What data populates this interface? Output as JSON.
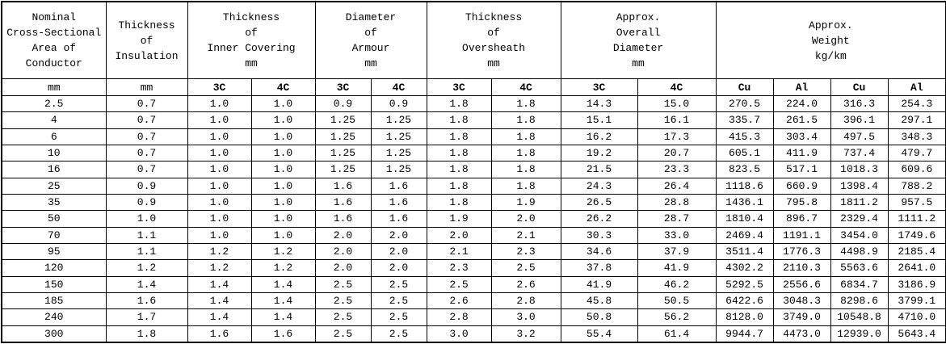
{
  "colors": {
    "border": "#000000",
    "background": "#ffffff",
    "text": "#000000"
  },
  "table": {
    "header_groups": [
      {
        "title": "Nominal\nCross-Sectional\nArea of\nConductor"
      },
      {
        "title": "Thickness\nof\nInsulation"
      },
      {
        "title": "Thickness\nof\nInner Covering\nmm"
      },
      {
        "title": "Diameter\nof\nArmour\nmm"
      },
      {
        "title": "Thickness\nof\nOversheath\nmm"
      },
      {
        "title": "Approx.\nOverall\nDiameter\nmm"
      },
      {
        "title": "Approx.\nWeight\nkg/km"
      }
    ],
    "subheaders": [
      "mm",
      "mm",
      "3C",
      "4C",
      "3C",
      "4C",
      "3C",
      "4C",
      "3C",
      "4C",
      "Cu",
      "Al",
      "Cu",
      "Al"
    ],
    "rows": [
      [
        "2.5",
        "0.7",
        "1.0",
        "1.0",
        "0.9",
        "0.9",
        "1.8",
        "1.8",
        "14.3",
        "15.0",
        "270.5",
        "224.0",
        "316.3",
        "254.3"
      ],
      [
        "4",
        "0.7",
        "1.0",
        "1.0",
        "1.25",
        "1.25",
        "1.8",
        "1.8",
        "15.1",
        "16.1",
        "335.7",
        "261.5",
        "396.1",
        "297.1"
      ],
      [
        "6",
        "0.7",
        "1.0",
        "1.0",
        "1.25",
        "1.25",
        "1.8",
        "1.8",
        "16.2",
        "17.3",
        "415.3",
        "303.4",
        "497.5",
        "348.3"
      ],
      [
        "10",
        "0.7",
        "1.0",
        "1.0",
        "1.25",
        "1.25",
        "1.8",
        "1.8",
        "19.2",
        "20.7",
        "605.1",
        "411.9",
        "737.4",
        "479.7"
      ],
      [
        "16",
        "0.7",
        "1.0",
        "1.0",
        "1.25",
        "1.25",
        "1.8",
        "1.8",
        "21.5",
        "23.3",
        "823.5",
        "517.1",
        "1018.3",
        "609.6"
      ],
      [
        "25",
        "0.9",
        "1.0",
        "1.0",
        "1.6",
        "1.6",
        "1.8",
        "1.8",
        "24.3",
        "26.4",
        "1118.6",
        "660.9",
        "1398.4",
        "788.2"
      ],
      [
        "35",
        "0.9",
        "1.0",
        "1.0",
        "1.6",
        "1.6",
        "1.8",
        "1.9",
        "26.5",
        "28.8",
        "1436.1",
        "795.8",
        "1811.2",
        "957.5"
      ],
      [
        "50",
        "1.0",
        "1.0",
        "1.0",
        "1.6",
        "1.6",
        "1.9",
        "2.0",
        "26.2",
        "28.7",
        "1810.4",
        "896.7",
        "2329.4",
        "1111.2"
      ],
      [
        "70",
        "1.1",
        "1.0",
        "1.0",
        "2.0",
        "2.0",
        "2.0",
        "2.1",
        "30.3",
        "33.0",
        "2469.4",
        "1191.1",
        "3454.0",
        "1749.6"
      ],
      [
        "95",
        "1.1",
        "1.2",
        "1.2",
        "2.0",
        "2.0",
        "2.1",
        "2.3",
        "34.6",
        "37.9",
        "3511.4",
        "1776.3",
        "4498.9",
        "2185.4"
      ],
      [
        "120",
        "1.2",
        "1.2",
        "1.2",
        "2.0",
        "2.0",
        "2.3",
        "2.5",
        "37.8",
        "41.9",
        "4302.2",
        "2110.3",
        "5563.6",
        "2641.0"
      ],
      [
        "150",
        "1.4",
        "1.4",
        "1.4",
        "2.5",
        "2.5",
        "2.5",
        "2.6",
        "41.9",
        "46.2",
        "5292.5",
        "2556.6",
        "6834.7",
        "3186.9"
      ],
      [
        "185",
        "1.6",
        "1.4",
        "1.4",
        "2.5",
        "2.5",
        "2.6",
        "2.8",
        "45.8",
        "50.5",
        "6422.6",
        "3048.3",
        "8298.6",
        "3799.1"
      ],
      [
        "240",
        "1.7",
        "1.4",
        "1.4",
        "2.5",
        "2.5",
        "2.8",
        "3.0",
        "50.8",
        "56.2",
        "8128.0",
        "3749.0",
        "10548.8",
        "4710.0"
      ],
      [
        "300",
        "1.8",
        "1.6",
        "1.6",
        "2.5",
        "2.5",
        "3.0",
        "3.2",
        "55.4",
        "61.4",
        "9944.7",
        "4473.0",
        "12939.0",
        "5643.4"
      ]
    ]
  }
}
